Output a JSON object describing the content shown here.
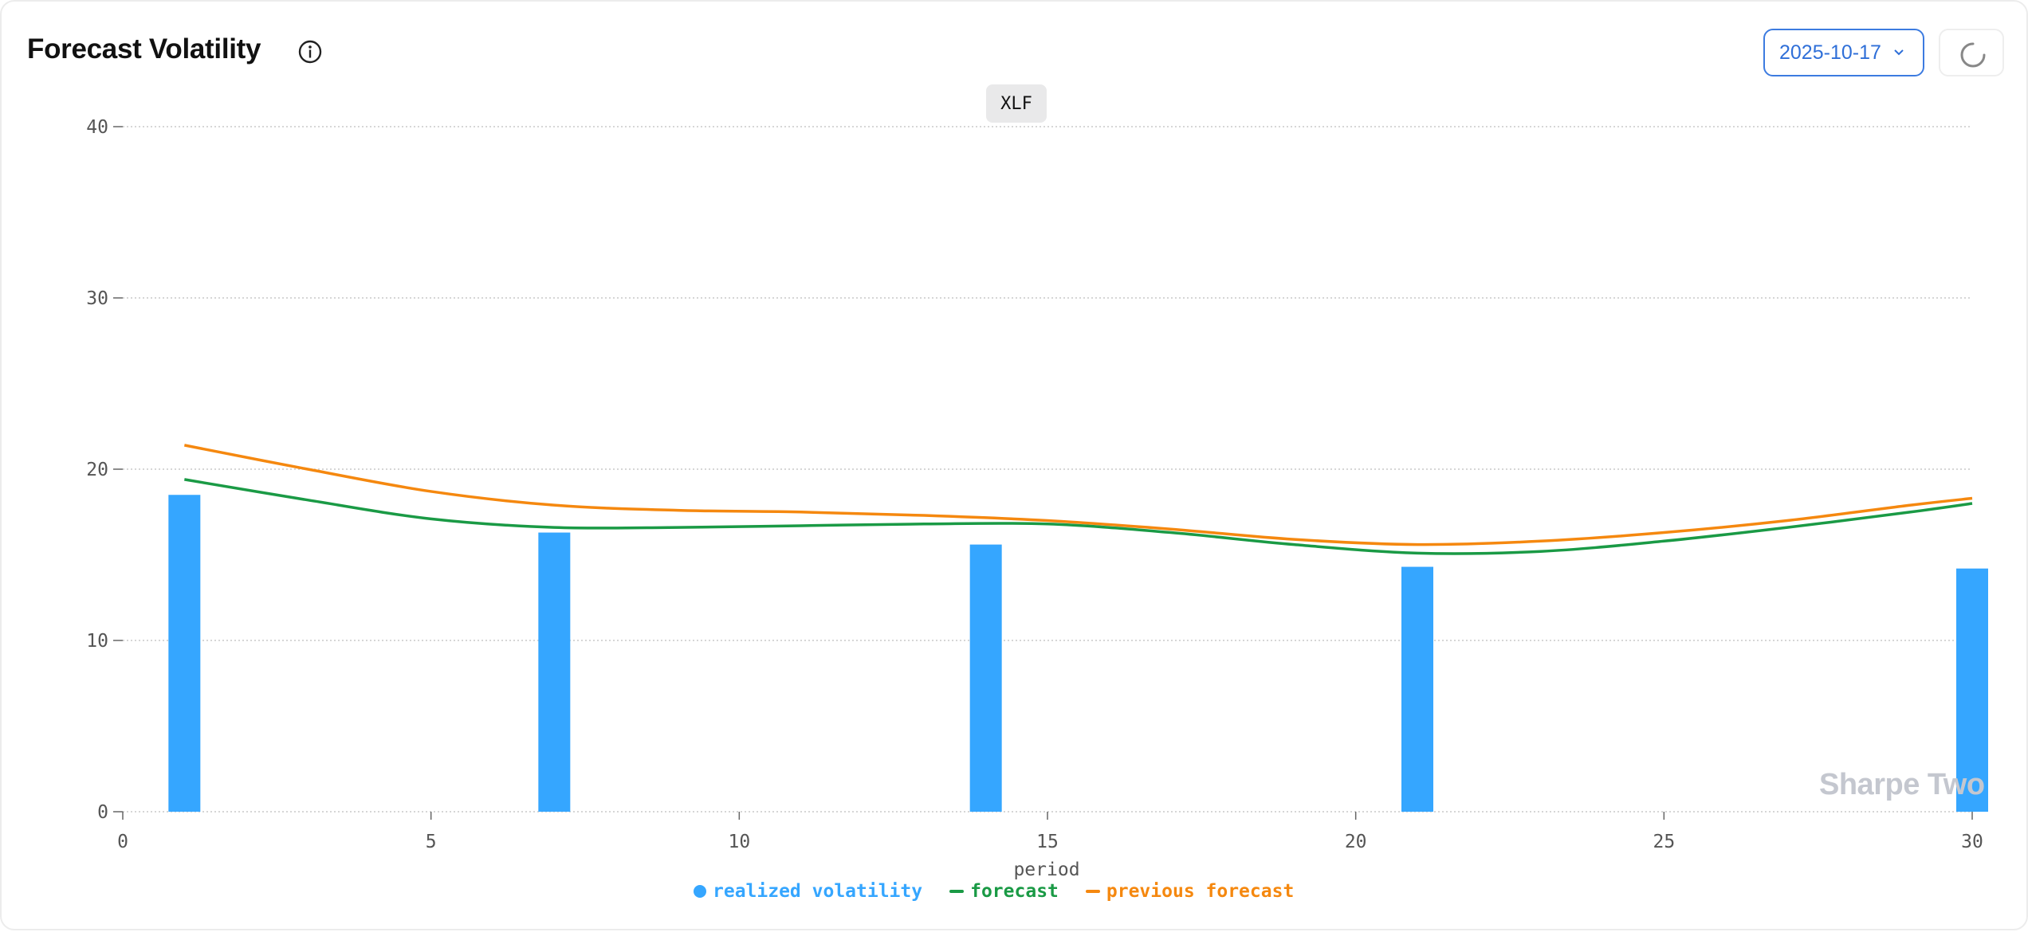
{
  "header": {
    "title": "Forecast Volatility",
    "date_value": "2025-10-17"
  },
  "icons": {
    "info": "info-circle-icon",
    "chevron": "chevron-down-icon",
    "refresh": "loading-spinner-icon"
  },
  "colors": {
    "realized": "#35a6ff",
    "forecast": "#1a9a45",
    "previous_forecast": "#f5880f",
    "accent": "#3c7be0"
  },
  "watermark": "Sharpe Two",
  "chart_data": {
    "type": "bar",
    "series_tag": "XLF",
    "xlabel": "period",
    "ylabel": "",
    "xlim": [
      0,
      30
    ],
    "ylim": [
      0,
      40
    ],
    "x_ticks": [
      0,
      5,
      10,
      15,
      20,
      25,
      30
    ],
    "y_ticks": [
      0,
      10,
      20,
      30,
      40
    ],
    "grid": true,
    "legend_position": "bottom-center",
    "series": [
      {
        "name": "realized volatility",
        "type": "bar",
        "x": [
          1,
          7,
          14,
          21,
          30
        ],
        "values": [
          18.5,
          16.3,
          15.6,
          14.3,
          14.2
        ]
      },
      {
        "name": "forecast",
        "type": "line",
        "x": [
          1,
          3,
          5,
          7,
          9,
          11,
          13,
          15,
          17,
          19,
          21,
          23,
          25,
          27,
          29,
          30
        ],
        "values": [
          19.4,
          18.2,
          17.1,
          16.6,
          16.6,
          16.7,
          16.8,
          16.8,
          16.3,
          15.6,
          15.1,
          15.2,
          15.8,
          16.6,
          17.5,
          18.0
        ]
      },
      {
        "name": "previous forecast",
        "type": "line",
        "x": [
          1,
          3,
          5,
          7,
          9,
          11,
          13,
          15,
          17,
          19,
          21,
          23,
          25,
          27,
          29,
          30
        ],
        "values": [
          21.4,
          20.0,
          18.7,
          17.9,
          17.6,
          17.5,
          17.3,
          17.0,
          16.5,
          15.9,
          15.6,
          15.8,
          16.3,
          17.0,
          17.9,
          18.3
        ]
      }
    ]
  }
}
